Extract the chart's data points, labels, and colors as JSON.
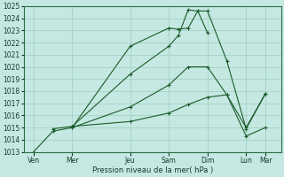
{
  "title": "",
  "xlabel": "Pression niveau de la mer( hPa )",
  "ylim": [
    1013,
    1025
  ],
  "yticks": [
    1013,
    1014,
    1015,
    1016,
    1017,
    1018,
    1019,
    1020,
    1021,
    1022,
    1023,
    1024,
    1025
  ],
  "xtick_labels": [
    "Ven",
    "Mer",
    "Jeu",
    "Sam",
    "Dim",
    "Lun",
    "Mar"
  ],
  "background_color": "#c5e8e2",
  "grid_color": "#9ecfbe",
  "line_color": "#1a5c2a",
  "series": [
    {
      "x": [
        0,
        1,
        2,
        5,
        7,
        7.5,
        8,
        8.5,
        9
      ],
      "y": [
        1013.0,
        1014.7,
        1015.0,
        1021.7,
        1023.2,
        1023.1,
        1023.2,
        1024.6,
        1022.8
      ]
    },
    {
      "x": [
        1,
        2,
        5,
        7,
        7.5,
        8,
        8.5,
        9,
        10,
        11,
        12
      ],
      "y": [
        1014.9,
        1015.1,
        1019.4,
        1021.7,
        1022.6,
        1024.7,
        1024.6,
        1024.6,
        1020.5,
        1014.9,
        1017.8
      ]
    },
    {
      "x": [
        2,
        5,
        7,
        8,
        9,
        10,
        11,
        12
      ],
      "y": [
        1015.0,
        1016.7,
        1018.5,
        1020.0,
        1020.0,
        1017.7,
        1015.0,
        1017.8
      ]
    },
    {
      "x": [
        2,
        5,
        7,
        8,
        9,
        10,
        11,
        12
      ],
      "y": [
        1015.1,
        1015.5,
        1016.2,
        1016.9,
        1017.5,
        1017.7,
        1014.3,
        1015.0
      ]
    }
  ],
  "xtick_positions": [
    0,
    2,
    5,
    7,
    9,
    11,
    12
  ],
  "xlim": [
    -0.5,
    12.8
  ]
}
